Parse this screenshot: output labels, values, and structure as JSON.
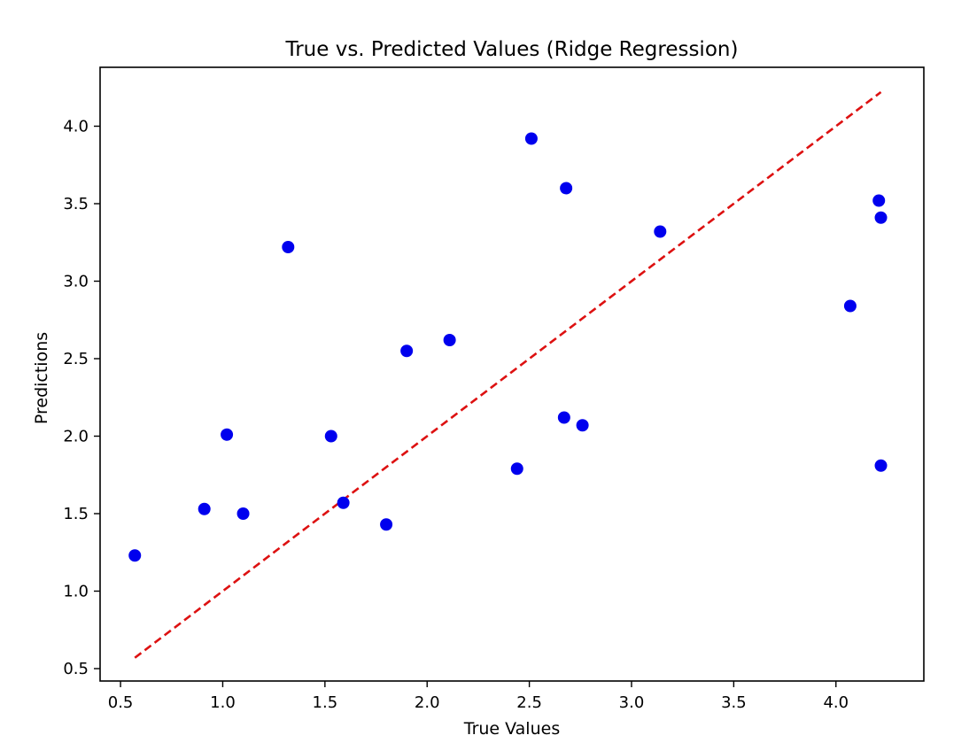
{
  "chart_data": {
    "type": "scatter",
    "title": "True vs. Predicted Values (Ridge Regression)",
    "xlabel": "True Values",
    "ylabel": "Predictions",
    "xlim": [
      0.4,
      4.43
    ],
    "ylim": [
      0.42,
      4.38
    ],
    "x_ticks": [
      "0.5",
      "1.0",
      "1.5",
      "2.0",
      "2.5",
      "3.0",
      "3.5",
      "4.0"
    ],
    "y_ticks": [
      "0.5",
      "1.0",
      "1.5",
      "2.0",
      "2.5",
      "3.0",
      "3.5",
      "4.0"
    ],
    "grid": false,
    "legend": "none",
    "colors": {
      "points": "#0000ee",
      "reference_line": "#dd1111",
      "axes": "#000000",
      "background": "#ffffff"
    },
    "reference_line": {
      "style": "dashed",
      "x": [
        0.57,
        4.22
      ],
      "y": [
        0.57,
        4.22
      ]
    },
    "points": [
      {
        "x": 0.57,
        "y": 1.23
      },
      {
        "x": 0.91,
        "y": 1.53
      },
      {
        "x": 1.02,
        "y": 2.01
      },
      {
        "x": 1.1,
        "y": 1.5
      },
      {
        "x": 1.32,
        "y": 3.22
      },
      {
        "x": 1.53,
        "y": 2.0
      },
      {
        "x": 1.59,
        "y": 1.57
      },
      {
        "x": 1.8,
        "y": 1.43
      },
      {
        "x": 1.9,
        "y": 2.55
      },
      {
        "x": 2.11,
        "y": 2.62
      },
      {
        "x": 2.44,
        "y": 1.79
      },
      {
        "x": 2.51,
        "y": 3.92
      },
      {
        "x": 2.67,
        "y": 2.12
      },
      {
        "x": 2.68,
        "y": 3.6
      },
      {
        "x": 2.76,
        "y": 2.07
      },
      {
        "x": 3.14,
        "y": 3.32
      },
      {
        "x": 4.07,
        "y": 2.84
      },
      {
        "x": 4.21,
        "y": 3.52
      },
      {
        "x": 4.22,
        "y": 3.41
      },
      {
        "x": 4.22,
        "y": 1.81
      }
    ]
  }
}
